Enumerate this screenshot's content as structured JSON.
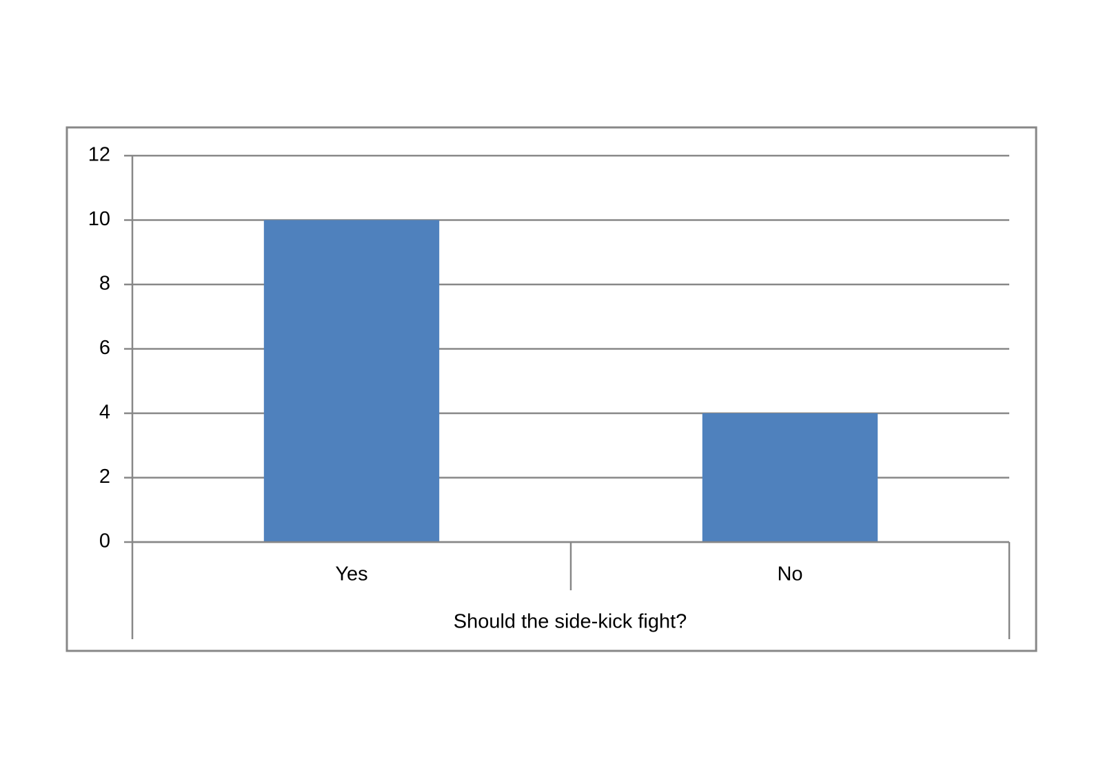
{
  "chart_data": {
    "type": "bar",
    "categories": [
      "Yes",
      "No"
    ],
    "values": [
      10,
      4
    ],
    "color": "#4f81bd",
    "x_label": "Should the side-kick fight?",
    "ylim": [
      0,
      12
    ],
    "yticks": [
      0,
      2,
      4,
      6,
      8,
      10,
      12
    ],
    "grid": true
  }
}
